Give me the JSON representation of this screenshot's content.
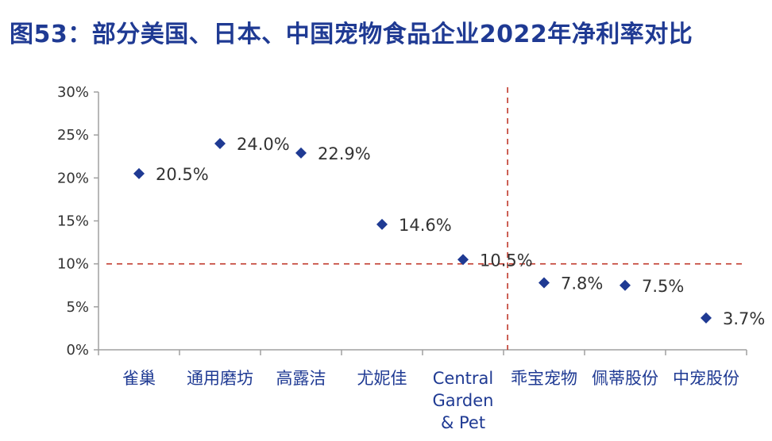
{
  "chart_data": {
    "type": "scatter",
    "title": "图53：部分美国、日本、中国宠物食品企业2022年净利率对比",
    "categories": [
      "雀巢",
      "通用磨坊",
      "高露洁",
      "尤妮佳",
      "Central Garden & Pet",
      "乖宝宠物",
      "佩蒂股份",
      "中宠股份"
    ],
    "category_lines": [
      [
        "雀巢"
      ],
      [
        "通用磨坊"
      ],
      [
        "高露洁"
      ],
      [
        "尤妮佳"
      ],
      [
        "Central",
        "Garden",
        "& Pet"
      ],
      [
        "乖宝宠物"
      ],
      [
        "佩蒂股份"
      ],
      [
        "中宠股份"
      ]
    ],
    "values": [
      20.5,
      24.0,
      22.9,
      14.6,
      10.5,
      7.8,
      7.5,
      3.7
    ],
    "data_labels": [
      "20.5%",
      "24.0%",
      "22.9%",
      "14.6%",
      "10.5%",
      "7.8%",
      "7.5%",
      "3.7%"
    ],
    "y_ticks": [
      "0%",
      "5%",
      "10%",
      "15%",
      "20%",
      "25%",
      "30%"
    ],
    "ylim": [
      0,
      30
    ],
    "xlabel": "",
    "ylabel": "",
    "grid": false,
    "reference_line_y": 10,
    "reference_line_x_between": [
      4.5,
      5.5
    ],
    "colors": {
      "marker": "#1f3a93",
      "title": "#1f3a93",
      "reference_line": "#c0392b",
      "axis": "#a0a0a0"
    }
  }
}
